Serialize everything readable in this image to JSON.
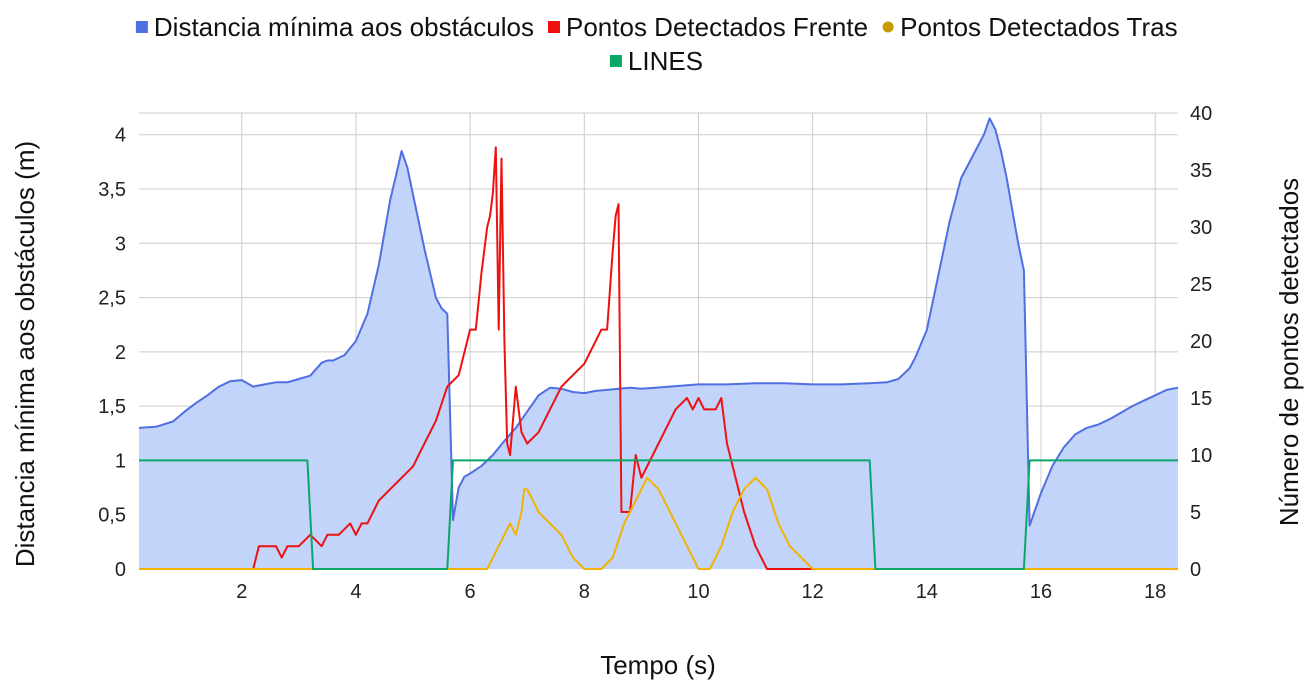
{
  "chart_data": {
    "type": "line",
    "xlabel": "Tempo (s)",
    "ylabel_left": "Distancia mínima aos obstáculos (m)",
    "ylabel_right": "Número de pontos detectados",
    "xlim": [
      0.2,
      18.4
    ],
    "ylim_left": [
      0,
      4.2
    ],
    "ylim_right": [
      0,
      40
    ],
    "x_ticks": [
      2,
      4,
      6,
      8,
      10,
      12,
      14,
      16,
      18
    ],
    "x_tick_labels": [
      "2",
      "4",
      "6",
      "8",
      "10",
      "12",
      "14",
      "16",
      "18"
    ],
    "y_left_ticks": [
      0,
      0.5,
      1,
      1.5,
      2,
      2.5,
      3,
      3.5,
      4
    ],
    "y_left_tick_labels": [
      "0",
      "0,5",
      "1",
      "1,5",
      "2",
      "2,5",
      "3",
      "3,5",
      "4"
    ],
    "y_right_ticks": [
      0,
      5,
      10,
      15,
      20,
      25,
      30,
      35,
      40
    ],
    "y_right_tick_labels": [
      "0",
      "5",
      "10",
      "15",
      "20",
      "25",
      "30",
      "35",
      "40"
    ],
    "grid": true,
    "legend_position": "top",
    "series": [
      {
        "name": "Distancia mínima aos obstáculos",
        "kind": "area",
        "axis": "left",
        "color": "#4f6fe3",
        "fill": "#c3d4fa",
        "x": [
          0.2,
          0.5,
          0.8,
          1.0,
          1.2,
          1.4,
          1.6,
          1.8,
          2.0,
          2.2,
          2.4,
          2.6,
          2.8,
          3.0,
          3.2,
          3.4,
          3.5,
          3.6,
          3.8,
          4.0,
          4.2,
          4.4,
          4.5,
          4.6,
          4.7,
          4.8,
          4.9,
          5.0,
          5.2,
          5.4,
          5.5,
          5.6,
          5.7,
          5.75,
          5.8,
          5.9,
          6.0,
          6.2,
          6.4,
          6.6,
          6.8,
          7.0,
          7.2,
          7.4,
          7.6,
          7.8,
          8.0,
          8.2,
          8.4,
          8.6,
          8.8,
          9.0,
          9.5,
          10.0,
          10.5,
          11.0,
          11.5,
          12.0,
          12.5,
          13.0,
          13.3,
          13.5,
          13.6,
          13.7,
          13.8,
          14.0,
          14.2,
          14.4,
          14.6,
          14.8,
          15.0,
          15.1,
          15.2,
          15.3,
          15.4,
          15.5,
          15.6,
          15.7,
          15.8,
          15.9,
          16.0,
          16.2,
          16.4,
          16.6,
          16.8,
          17.0,
          17.2,
          17.4,
          17.6,
          17.8,
          18.0,
          18.2,
          18.4
        ],
        "values": [
          1.3,
          1.31,
          1.36,
          1.45,
          1.53,
          1.6,
          1.68,
          1.73,
          1.74,
          1.68,
          1.7,
          1.72,
          1.72,
          1.75,
          1.78,
          1.9,
          1.92,
          1.92,
          1.97,
          2.1,
          2.35,
          2.8,
          3.1,
          3.4,
          3.62,
          3.85,
          3.7,
          3.45,
          2.95,
          2.5,
          2.4,
          2.35,
          0.45,
          0.6,
          0.75,
          0.85,
          0.88,
          0.95,
          1.05,
          1.18,
          1.3,
          1.45,
          1.6,
          1.67,
          1.66,
          1.63,
          1.62,
          1.64,
          1.65,
          1.66,
          1.67,
          1.66,
          1.68,
          1.7,
          1.7,
          1.71,
          1.71,
          1.7,
          1.7,
          1.71,
          1.72,
          1.75,
          1.8,
          1.85,
          1.95,
          2.2,
          2.7,
          3.2,
          3.6,
          3.8,
          4.0,
          4.15,
          4.05,
          3.85,
          3.6,
          3.3,
          3.0,
          2.75,
          0.4,
          0.55,
          0.7,
          0.95,
          1.12,
          1.24,
          1.3,
          1.33,
          1.38,
          1.44,
          1.5,
          1.55,
          1.6,
          1.65,
          1.67
        ]
      },
      {
        "name": "Pontos Detectados Frente",
        "kind": "line",
        "axis": "right",
        "color": "#ee1111",
        "x": [
          0.2,
          2.2,
          2.3,
          2.6,
          2.7,
          2.8,
          3.0,
          3.2,
          3.4,
          3.5,
          3.7,
          3.9,
          4.0,
          4.1,
          4.2,
          4.4,
          4.6,
          4.8,
          5.0,
          5.2,
          5.4,
          5.6,
          5.8,
          5.9,
          6.0,
          6.1,
          6.2,
          6.3,
          6.35,
          6.4,
          6.45,
          6.5,
          6.55,
          6.6,
          6.65,
          6.7,
          6.8,
          6.9,
          7.0,
          7.2,
          7.4,
          7.6,
          7.8,
          8.0,
          8.2,
          8.3,
          8.4,
          8.5,
          8.55,
          8.6,
          8.65,
          8.7,
          8.8,
          8.9,
          9.0,
          9.2,
          9.4,
          9.6,
          9.8,
          9.9,
          10.0,
          10.1,
          10.3,
          10.4,
          10.5,
          10.6,
          10.7,
          10.8,
          11.0,
          11.2,
          11.3,
          11.5,
          12.0
        ],
        "values": [
          0,
          0,
          2,
          2,
          1,
          2,
          2,
          3,
          2,
          3,
          3,
          4,
          3,
          4,
          4,
          6,
          7,
          8,
          9,
          11,
          13,
          16,
          17,
          19,
          21,
          21,
          26,
          30,
          31,
          33,
          37,
          21,
          36,
          20,
          11,
          10,
          16,
          12,
          11,
          12,
          14,
          16,
          17,
          18,
          20,
          21,
          21,
          28,
          31,
          32,
          5,
          5,
          5,
          10,
          8,
          10,
          12,
          14,
          15,
          14,
          15,
          14,
          14,
          15,
          11,
          9,
          7,
          5,
          2,
          0,
          0,
          0,
          0
        ]
      },
      {
        "name": "Pontos Detectados Tras",
        "kind": "line",
        "axis": "right",
        "color": "#f2b300",
        "x": [
          0.2,
          6.3,
          6.5,
          6.7,
          6.8,
          6.9,
          6.95,
          7.0,
          7.1,
          7.2,
          7.4,
          7.6,
          7.8,
          8.0,
          8.3,
          8.5,
          8.7,
          8.9,
          9.1,
          9.3,
          9.5,
          9.7,
          9.9,
          10.0,
          10.2,
          10.4,
          10.6,
          10.8,
          11.0,
          11.2,
          11.4,
          11.6,
          11.8,
          12.0,
          18.4
        ],
        "values": [
          0,
          0,
          2,
          4,
          3,
          5,
          7,
          7,
          6,
          5,
          4,
          3,
          1,
          0,
          0,
          1,
          4,
          6,
          8,
          7,
          5,
          3,
          1,
          0,
          0,
          2,
          5,
          7,
          8,
          7,
          4,
          2,
          1,
          0,
          0
        ]
      },
      {
        "name": "LINES",
        "kind": "line",
        "axis": "left",
        "color": "#0aa868",
        "x": [
          0.2,
          3.15,
          3.25,
          5.6,
          5.7,
          13.0,
          13.1,
          15.7,
          15.8,
          18.4
        ],
        "values": [
          1,
          1,
          0,
          0,
          1,
          1,
          0,
          0,
          1,
          1
        ]
      }
    ]
  }
}
